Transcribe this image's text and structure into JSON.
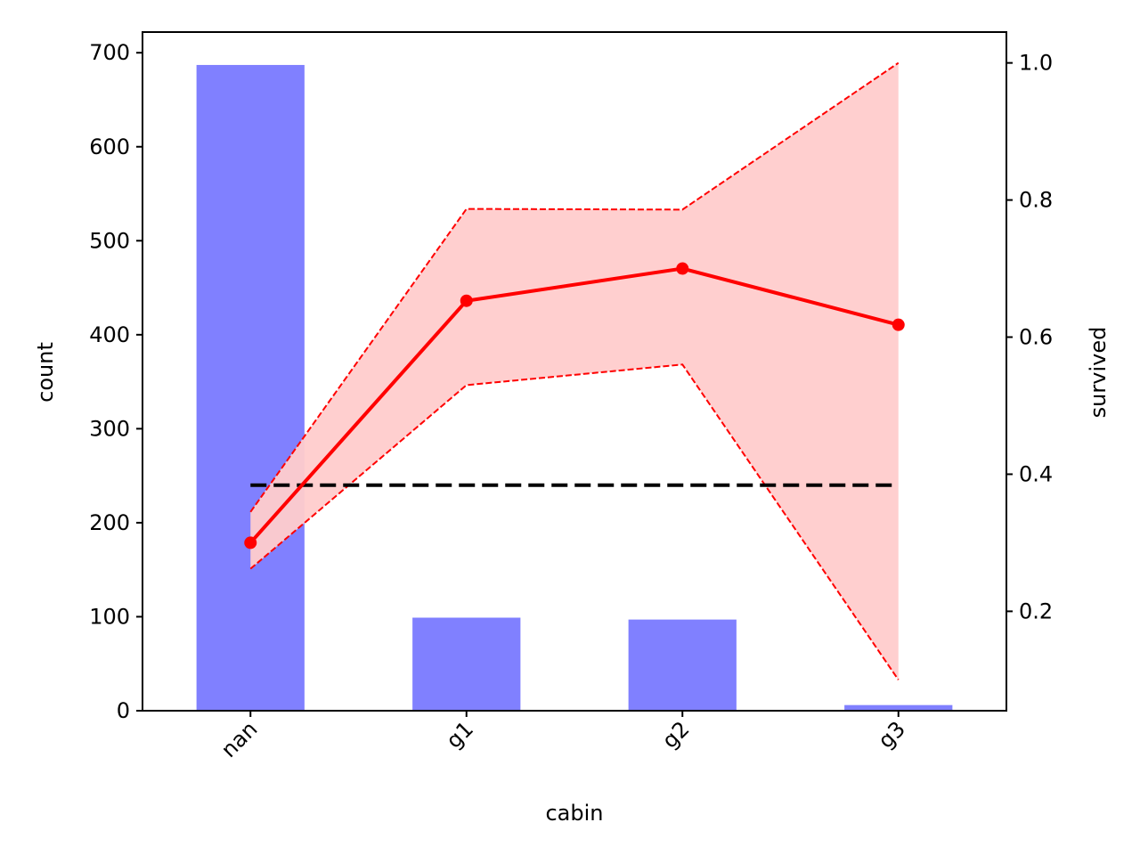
{
  "chart_data": {
    "type": "bar+line",
    "title": "",
    "xlabel": "cabin",
    "ylabel_left": "count",
    "ylabel_right": "survived",
    "categories": [
      "nan",
      "g1",
      "g2",
      "g3"
    ],
    "bar_series": {
      "values": [
        687,
        99,
        97,
        6
      ],
      "color": "#8080ff"
    },
    "line_series": {
      "values": [
        0.3,
        0.653,
        0.7,
        0.618
      ],
      "ci_upper": [
        0.345,
        0.787,
        0.786,
        1.0
      ],
      "ci_lower": [
        0.262,
        0.53,
        0.56,
        0.1
      ],
      "color": "#ff0000",
      "fill_color": "#ffcccc"
    },
    "reference_line": {
      "value": 0.384,
      "color": "#000000",
      "style": "dashed"
    },
    "y_left": {
      "lim": [
        0,
        722
      ],
      "ticks": [
        0,
        100,
        200,
        300,
        400,
        500,
        600,
        700
      ]
    },
    "y_right": {
      "lim": [
        0.055,
        1.045
      ],
      "ticks": [
        0.2,
        0.4,
        0.6,
        0.8,
        1.0
      ],
      "tick_labels": [
        "0.2",
        "0.4",
        "0.6",
        "0.8",
        "1.0"
      ]
    },
    "x_tick_rotation": 45,
    "grid": false,
    "legend": "none"
  }
}
